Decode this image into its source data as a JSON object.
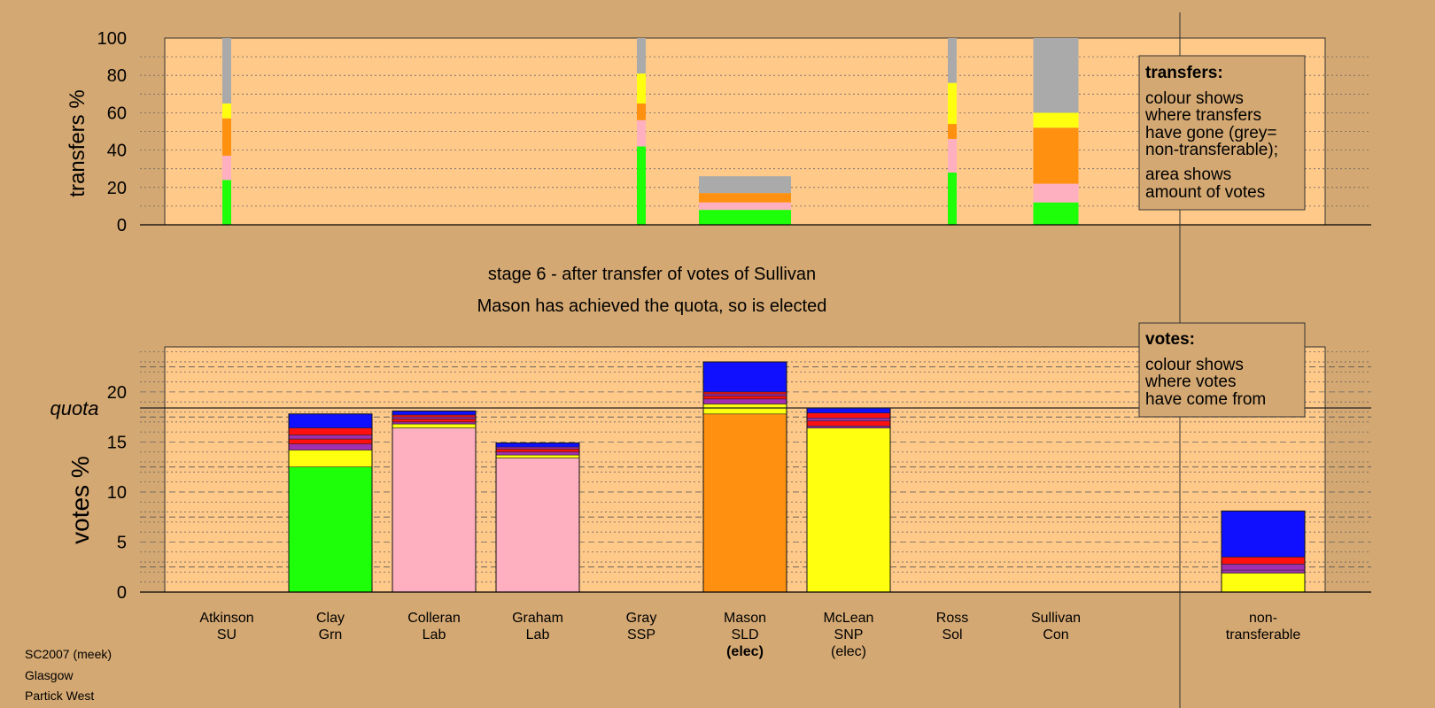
{
  "colors": {
    "background": "#d4a872",
    "plot_fill": "#ffc98a",
    "green": "#1eff0a",
    "pink": "#ffb0c0",
    "orange": "#ff9010",
    "yellow": "#ffff10",
    "purple": "#a030b0",
    "red": "#ff1010",
    "blue": "#1010ff",
    "grey": "#aaaaaa"
  },
  "footer": [
    "SC2007 (meek)",
    "Glasgow",
    "Partick West"
  ],
  "titles": {
    "stage": "stage 6 - after transfer of votes of Sullivan",
    "status": "Mason has achieved the quota, so is elected"
  },
  "legend_transfers": {
    "heading": "transfers:",
    "lines": [
      "colour shows",
      "where transfers",
      "have gone (grey=",
      "non-transferable);",
      "area shows",
      "amount of votes"
    ]
  },
  "legend_votes": {
    "heading": "votes:",
    "lines": [
      "colour shows",
      "where votes",
      "have come from"
    ]
  },
  "chart_data": [
    {
      "type": "bar",
      "stacked": true,
      "ylabel": "transfers %",
      "ylim": [
        0,
        100
      ],
      "yticks": [
        0,
        20,
        40,
        60,
        80,
        100
      ],
      "grid": true,
      "columns": [
        {
          "name": "Atkinson",
          "width": "thin",
          "segments": [
            {
              "color": "green",
              "value": 24
            },
            {
              "color": "pink",
              "value": 13
            },
            {
              "color": "orange",
              "value": 20
            },
            {
              "color": "yellow",
              "value": 8
            },
            {
              "color": "grey",
              "value": 35
            }
          ]
        },
        {
          "name": "Gray",
          "width": "thin",
          "segments": [
            {
              "color": "green",
              "value": 42
            },
            {
              "color": "pink",
              "value": 14
            },
            {
              "color": "orange",
              "value": 9
            },
            {
              "color": "yellow",
              "value": 16
            },
            {
              "color": "grey",
              "value": 19
            }
          ]
        },
        {
          "name": "Mason",
          "width": "full",
          "segments": [
            {
              "color": "green",
              "value": 8
            },
            {
              "color": "pink",
              "value": 4
            },
            {
              "color": "orange",
              "value": 5
            },
            {
              "color": "grey",
              "value": 9
            }
          ]
        },
        {
          "name": "Ross",
          "width": "thin",
          "segments": [
            {
              "color": "green",
              "value": 28
            },
            {
              "color": "pink",
              "value": 18
            },
            {
              "color": "orange",
              "value": 8
            },
            {
              "color": "yellow",
              "value": 22
            },
            {
              "color": "grey",
              "value": 24
            }
          ]
        },
        {
          "name": "Sullivan",
          "width": "half",
          "segments": [
            {
              "color": "green",
              "value": 12
            },
            {
              "color": "pink",
              "value": 10
            },
            {
              "color": "orange",
              "value": 30
            },
            {
              "color": "yellow",
              "value": 8
            },
            {
              "color": "grey",
              "value": 40
            }
          ]
        }
      ]
    },
    {
      "type": "bar",
      "stacked": true,
      "ylabel": "votes %",
      "ylim": [
        0,
        24.5
      ],
      "yticks": [
        0,
        5,
        10,
        15,
        20
      ],
      "quota": 18.4,
      "quota_label": "quota",
      "grid": true,
      "categories": [
        {
          "name": "Atkinson",
          "party": "SU",
          "note": ""
        },
        {
          "name": "Clay",
          "party": "Grn",
          "note": ""
        },
        {
          "name": "Colleran",
          "party": "Lab",
          "note": ""
        },
        {
          "name": "Graham",
          "party": "Lab",
          "note": ""
        },
        {
          "name": "Gray",
          "party": "SSP",
          "note": ""
        },
        {
          "name": "Mason",
          "party": "SLD",
          "note": "(elec)",
          "bold_note": true
        },
        {
          "name": "McLean",
          "party": "SNP",
          "note": "(elec)",
          "bold_note": false
        },
        {
          "name": "Ross",
          "party": "Sol",
          "note": ""
        },
        {
          "name": "Sullivan",
          "party": "Con",
          "note": ""
        },
        {
          "name": "non-",
          "party": "transferable",
          "note": ""
        }
      ],
      "stacks": [
        [],
        [
          {
            "color": "green",
            "value": 12.5
          },
          {
            "color": "yellow",
            "value": 1.7
          },
          {
            "color": "purple",
            "value": 0.6
          },
          {
            "color": "red",
            "value": 0.5
          },
          {
            "color": "purple",
            "value": 0.4
          },
          {
            "color": "red",
            "value": 0.7
          },
          {
            "color": "blue",
            "value": 1.4
          }
        ],
        [
          {
            "color": "pink",
            "value": 16.4
          },
          {
            "color": "yellow",
            "value": 0.4
          },
          {
            "color": "purple",
            "value": 0.2
          },
          {
            "color": "red",
            "value": 0.3
          },
          {
            "color": "purple",
            "value": 0.2
          },
          {
            "color": "red",
            "value": 0.2
          },
          {
            "color": "blue",
            "value": 0.4
          }
        ],
        [
          {
            "color": "pink",
            "value": 13.4
          },
          {
            "color": "yellow",
            "value": 0.3
          },
          {
            "color": "purple",
            "value": 0.3
          },
          {
            "color": "red",
            "value": 0.3
          },
          {
            "color": "purple",
            "value": 0.2
          },
          {
            "color": "blue",
            "value": 0.4
          }
        ],
        [],
        [
          {
            "color": "orange",
            "value": 17.8
          },
          {
            "color": "yellow",
            "value": 1.0
          },
          {
            "color": "purple",
            "value": 0.5
          },
          {
            "color": "red",
            "value": 0.3
          },
          {
            "color": "purple",
            "value": 0.2
          },
          {
            "color": "red",
            "value": 0.2
          },
          {
            "color": "blue",
            "value": 3.0
          }
        ],
        [
          {
            "color": "yellow",
            "value": 16.4
          },
          {
            "color": "purple",
            "value": 0.2
          },
          {
            "color": "red",
            "value": 0.5
          },
          {
            "color": "purple",
            "value": 0.3
          },
          {
            "color": "red",
            "value": 0.5
          },
          {
            "color": "blue",
            "value": 0.5
          }
        ],
        [],
        [],
        [
          {
            "color": "yellow",
            "value": 1.9
          },
          {
            "color": "purple",
            "value": 0.3
          },
          {
            "color": "purple",
            "value": 0.6
          },
          {
            "color": "red",
            "value": 0.7
          },
          {
            "color": "blue",
            "value": 4.6
          }
        ]
      ]
    }
  ]
}
